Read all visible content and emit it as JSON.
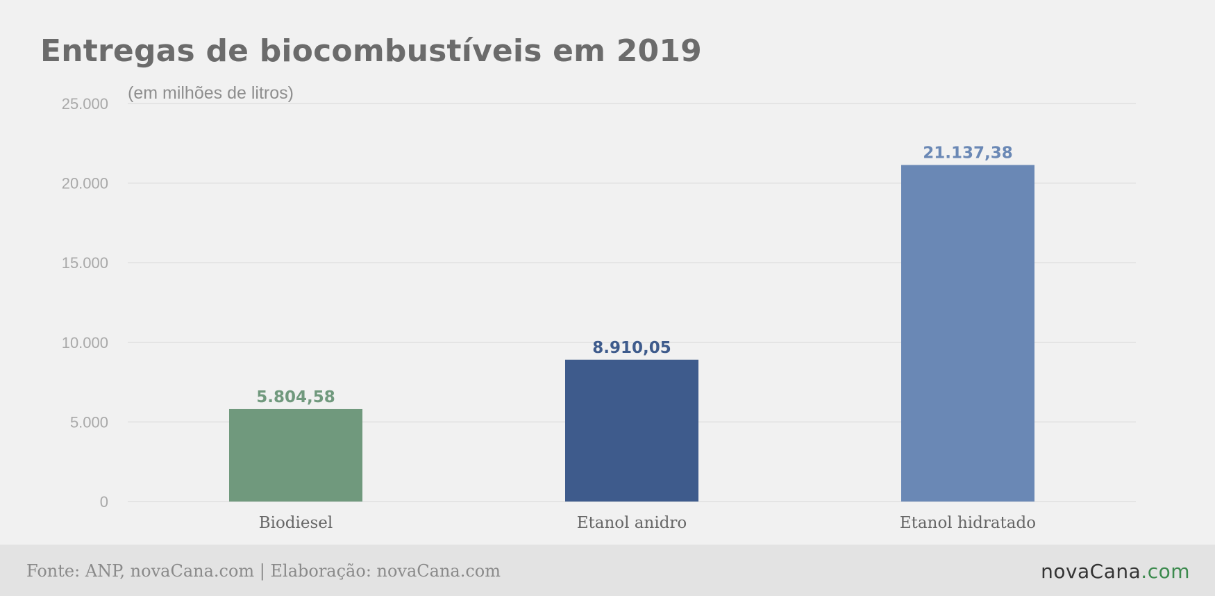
{
  "title": "Entregas de biocombustíveis em 2019",
  "unit_label": "(em milhões de litros)",
  "footer": {
    "source": "Fonte: ANP, novaCana.com | Elaboração: novaCana.com",
    "logo_main": "novaCana",
    "logo_tld": ".com"
  },
  "chart_data": {
    "type": "bar",
    "categories": [
      "Biodiesel",
      "Etanol anidro",
      "Etanol hidratado"
    ],
    "values": [
      5804.58,
      8910.05,
      21137.38
    ],
    "value_labels": [
      "5.804,58",
      "8.910,05",
      "21.137,38"
    ],
    "colors": [
      "#70997d",
      "#3e5b8c",
      "#6a88b5"
    ],
    "ylim": [
      0,
      25000
    ],
    "yticks": [
      0,
      5000,
      10000,
      15000,
      20000,
      25000
    ],
    "ytick_labels": [
      "0",
      "5.000",
      "10.000",
      "15.000",
      "20.000",
      "25.000"
    ],
    "grid": true
  }
}
